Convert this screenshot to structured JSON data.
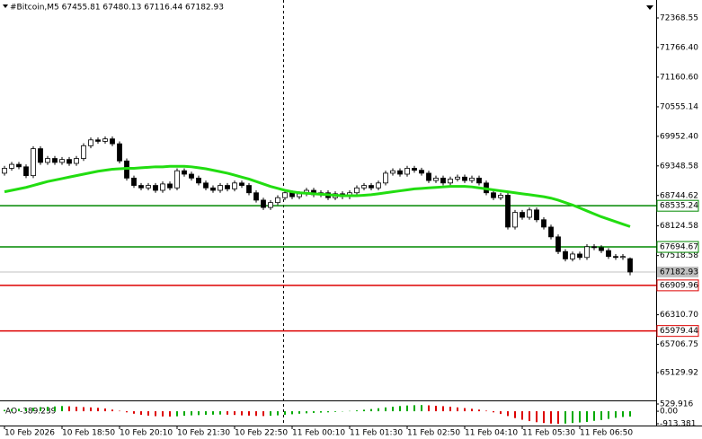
{
  "chart_data": {
    "type": "candlestick",
    "title": "#Bitcoin,M5  67455.81 67480.13 67116.44 67182.93",
    "categories": [
      "10 Feb 2026",
      null,
      null,
      null,
      null,
      null,
      null,
      null,
      "10 Feb 18:50",
      null,
      null,
      null,
      null,
      null,
      null,
      null,
      "10 Feb 20:10",
      null,
      null,
      null,
      null,
      null,
      null,
      null,
      "10 Feb 21:30",
      null,
      null,
      null,
      null,
      null,
      null,
      null,
      "10 Feb 22:50",
      null,
      null,
      null,
      null,
      null,
      null,
      null,
      "11 Feb 00:10",
      null,
      null,
      null,
      null,
      null,
      null,
      null,
      "11 Feb 01:30",
      null,
      null,
      null,
      null,
      null,
      null,
      null,
      "11 Feb 02:50",
      null,
      null,
      null,
      null,
      null,
      null,
      null,
      "11 Feb 04:10",
      null,
      null,
      null,
      null,
      null,
      null,
      null,
      "11 Feb 05:30",
      null,
      null,
      null,
      null,
      null,
      null,
      null,
      "11 Feb 06:50",
      null,
      null,
      null,
      null,
      null,
      null,
      null
    ],
    "open": [
      69200,
      69300,
      69380,
      69330,
      69150,
      69700,
      69420,
      69500,
      69420,
      69480,
      69400,
      69500,
      69760,
      69880,
      69850,
      69900,
      69800,
      69450,
      69100,
      68950,
      68900,
      68950,
      68850,
      68980,
      68900,
      69250,
      69180,
      69100,
      69000,
      68900,
      68850,
      68950,
      68880,
      69000,
      68950,
      68800,
      68650,
      68500,
      68600,
      68700,
      68800,
      68720,
      68780,
      68850,
      68760,
      68800,
      68700,
      68780,
      68720,
      68800,
      68900,
      68950,
      68900,
      69000,
      69200,
      69250,
      69180,
      69300,
      69260,
      69200,
      69050,
      69100,
      69000,
      69080,
      69120,
      69050,
      69100,
      69000,
      68800,
      68700,
      68750,
      68100,
      68400,
      68300,
      68450,
      68250,
      68100,
      67900,
      67600,
      67450,
      67550,
      67480,
      67700,
      67680,
      67620,
      67500,
      67480,
      67455.81
    ],
    "high": [
      69350,
      69430,
      69430,
      69380,
      69750,
      69750,
      69550,
      69550,
      69530,
      69530,
      69550,
      69810,
      69930,
      69930,
      69950,
      69950,
      69850,
      69500,
      69150,
      69000,
      69000,
      69000,
      69030,
      69030,
      69300,
      69300,
      69230,
      69150,
      69050,
      68950,
      69000,
      69000,
      69050,
      69050,
      69000,
      68850,
      68700,
      68650,
      68750,
      68850,
      68850,
      68830,
      68900,
      68900,
      68850,
      68850,
      68830,
      68830,
      68850,
      68950,
      69000,
      69000,
      69050,
      69250,
      69300,
      69300,
      69350,
      69350,
      69310,
      69250,
      69150,
      69150,
      69130,
      69170,
      69170,
      69150,
      69150,
      69050,
      68850,
      68800,
      68800,
      68450,
      68450,
      68500,
      68500,
      68300,
      68150,
      67950,
      67650,
      67600,
      67600,
      67750,
      67750,
      67730,
      67670,
      67550,
      67550,
      67480.13
    ],
    "low": [
      69150,
      69250,
      69280,
      69100,
      69100,
      69370,
      69370,
      69370,
      69370,
      69350,
      69350,
      69450,
      69710,
      69800,
      69800,
      69750,
      69400,
      69050,
      68900,
      68850,
      68850,
      68800,
      68800,
      68850,
      68850,
      69130,
      69050,
      68950,
      68850,
      68800,
      68800,
      68830,
      68830,
      68900,
      68750,
      68600,
      68450,
      68450,
      68550,
      68650,
      68670,
      68670,
      68730,
      68710,
      68710,
      68650,
      68650,
      68670,
      68670,
      68750,
      68850,
      68850,
      68850,
      68950,
      69150,
      69130,
      69130,
      69210,
      69150,
      69000,
      69000,
      68950,
      68950,
      69030,
      69000,
      69000,
      68950,
      68750,
      68650,
      68650,
      68050,
      68050,
      68250,
      68250,
      68200,
      68050,
      67850,
      67550,
      67400,
      67400,
      67430,
      67430,
      67630,
      67570,
      67450,
      67430,
      67430,
      67116.44
    ],
    "close": [
      69300,
      69380,
      69330,
      69150,
      69700,
      69420,
      69500,
      69420,
      69480,
      69400,
      69500,
      69760,
      69880,
      69850,
      69900,
      69800,
      69450,
      69100,
      68950,
      68900,
      68950,
      68850,
      68980,
      68900,
      69250,
      69180,
      69100,
      69000,
      68900,
      68850,
      68950,
      68880,
      69000,
      68950,
      68800,
      68650,
      68500,
      68600,
      68700,
      68800,
      68720,
      68780,
      68850,
      68760,
      68800,
      68700,
      68780,
      68720,
      68800,
      68900,
      68950,
      68900,
      69000,
      69200,
      69250,
      69180,
      69300,
      69260,
      69200,
      69050,
      69100,
      69000,
      69080,
      69120,
      69050,
      69100,
      69000,
      68800,
      68700,
      68750,
      68100,
      68400,
      68300,
      68450,
      68250,
      68100,
      67900,
      67600,
      67450,
      67550,
      67480,
      67700,
      67680,
      67620,
      67500,
      67480,
      67500,
      67182.93
    ],
    "candle_color": "#000000",
    "ylim": [
      64580.43,
      72735.05
    ],
    "yticks": [
      72368.55,
      {
        "value": 71766.4,
        "label": "71766.40"
      },
      {
        "value": 71160.6,
        "label": "71160.60"
      },
      70555.14,
      {
        "value": 69952.4,
        "label": "69952.40"
      },
      69348.58,
      68744.62,
      68124.58,
      67518.58,
      {
        "value": 66310.7,
        "label": "66310.70"
      },
      65706.75,
      65129.92
    ],
    "ma": {
      "color": "#22dd11",
      "values": [
        68820,
        68850,
        68880,
        68910,
        68950,
        68990,
        69030,
        69060,
        69090,
        69120,
        69150,
        69180,
        69210,
        69240,
        69260,
        69280,
        69290,
        69300,
        69300,
        69310,
        69320,
        69330,
        69330,
        69340,
        69340,
        69340,
        69330,
        69310,
        69290,
        69260,
        69230,
        69200,
        69160,
        69120,
        69080,
        69030,
        68980,
        68930,
        68890,
        68850,
        68820,
        68800,
        68790,
        68780,
        68770,
        68760,
        68750,
        68740,
        68740,
        68740,
        68750,
        68760,
        68780,
        68800,
        68820,
        68840,
        68860,
        68880,
        68890,
        68900,
        68910,
        68920,
        68930,
        68930,
        68930,
        68920,
        68900,
        68880,
        68860,
        68840,
        68820,
        68800,
        68780,
        68760,
        68740,
        68720,
        68690,
        68650,
        68600,
        68550,
        68490,
        68430,
        68370,
        68310,
        68260,
        68210,
        68160,
        68110
      ]
    },
    "levels": [
      {
        "value": 68535.24,
        "color": "#008800"
      },
      {
        "value": 67694.67,
        "color": "#008800"
      },
      {
        "value": 66909.96,
        "color": "#dd0000"
      },
      {
        "value": 65979.44,
        "color": "#dd0000"
      }
    ],
    "current": {
      "value": 67182.93,
      "color": "#c0c0c0"
    },
    "indicator": {
      "label": "AO -389.239",
      "up_color": "#00aa00",
      "down_color": "#dd0000",
      "values": [
        100,
        150,
        180,
        200,
        250,
        300,
        320,
        350,
        380,
        360,
        330,
        300,
        280,
        250,
        200,
        120,
        30,
        -80,
        -180,
        -260,
        -320,
        -360,
        -380,
        -390,
        -370,
        -330,
        -300,
        -280,
        -260,
        -250,
        -240,
        -250,
        -270,
        -300,
        -320,
        -340,
        -350,
        -330,
        -300,
        -260,
        -220,
        -180,
        -150,
        -120,
        -100,
        -80,
        -50,
        -20,
        20,
        60,
        110,
        160,
        220,
        280,
        330,
        380,
        420,
        440,
        450,
        430,
        400,
        370,
        330,
        280,
        230,
        180,
        120,
        40,
        -80,
        -200,
        -350,
        -500,
        -620,
        -720,
        -800,
        -860,
        -900,
        -913.381,
        -900,
        -860,
        -820,
        -780,
        -700,
        -640,
        -560,
        -480,
        -420,
        -389.239
      ],
      "ylim": [
        -913.381,
        529.916
      ],
      "yticks": [
        529.916,
        {
          "value": 0,
          "label": "0.00"
        },
        -913.381
      ]
    }
  }
}
